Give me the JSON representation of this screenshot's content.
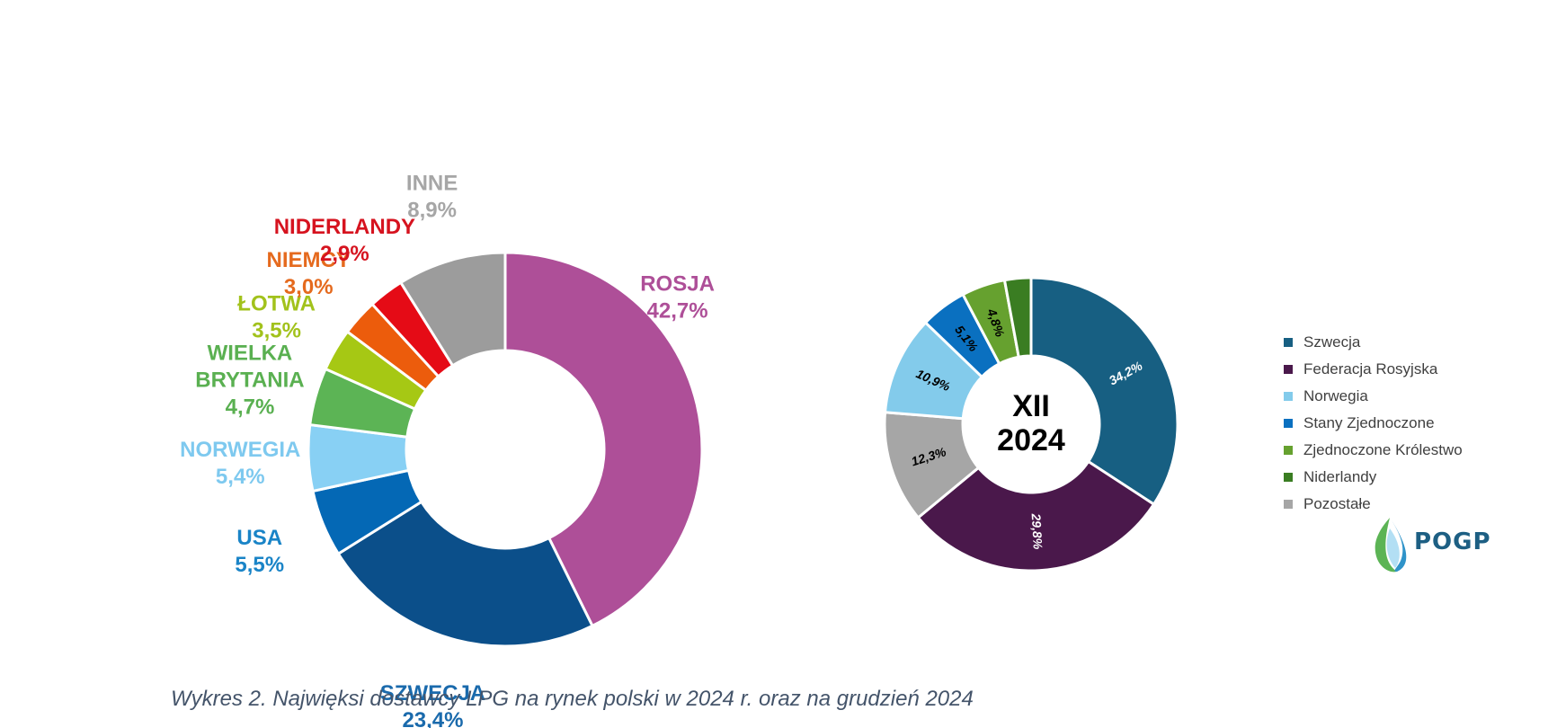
{
  "chart_data": [
    {
      "type": "pie",
      "subtype": "donut",
      "unit": "%",
      "slices": [
        {
          "name": "ROSJA",
          "value": 42.7,
          "display": "42,7%",
          "color": "#ae4f98",
          "label_color": "#ae4f98"
        },
        {
          "name": "SZWECJA",
          "value": 23.4,
          "display": "23,4%",
          "color": "#0b4f8a",
          "label_color": "#1a6aac"
        },
        {
          "name": "USA",
          "value": 5.5,
          "display": "5,5%",
          "color": "#0468b5",
          "label_color": "#1a84c7"
        },
        {
          "name": "NORWEGIA",
          "value": 5.4,
          "display": "5,4%",
          "color": "#88d0f4",
          "label_color": "#7ec9ef"
        },
        {
          "name": "WIELKA BRYTANIA",
          "name_lines": [
            "WIELKA",
            "BRYTANIA"
          ],
          "value": 4.7,
          "display": "4,7%",
          "color": "#5cb455",
          "label_color": "#5ab051"
        },
        {
          "name": "ŁOTWA",
          "value": 3.5,
          "display": "3,5%",
          "color": "#a6c814",
          "label_color": "#a2c21c"
        },
        {
          "name": "NIEMCY",
          "value": 3.0,
          "display": "3,0%",
          "color": "#ec5c0c",
          "label_color": "#e56a1e"
        },
        {
          "name": "NIDERLANDY",
          "value": 2.9,
          "display": "2,9%",
          "color": "#e50b16",
          "label_color": "#d6131f"
        },
        {
          "name": "INNE",
          "value": 8.9,
          "display": "8,9%",
          "color": "#9c9c9c",
          "label_color": "#a6a6a6"
        }
      ]
    },
    {
      "type": "pie",
      "subtype": "donut",
      "unit": "%",
      "center_label": [
        "XII",
        "2024"
      ],
      "legend_position": "right",
      "slices": [
        {
          "name": "Szwecja",
          "value": 34.2,
          "display": "34,2%",
          "color": "#175f82",
          "text_color": "#ffffff"
        },
        {
          "name": "Federacja Rosyjska",
          "value": 29.8,
          "display": "29,8%",
          "color": "#4a184b",
          "text_color": "#ffffff"
        },
        {
          "name": "Pozostałe",
          "value": 12.3,
          "display": "12,3%",
          "color": "#a6a6a6",
          "text_color": "#000000"
        },
        {
          "name": "Norwegia",
          "value": 10.9,
          "display": "10,9%",
          "color": "#83cbeb",
          "text_color": "#000000"
        },
        {
          "name": "Stany Zjednoczone",
          "value": 5.1,
          "display": "5,1%",
          "color": "#0a70c0",
          "text_color": "#000000"
        },
        {
          "name": "Zjednoczone Królestwo",
          "value": 4.8,
          "display": "4,8%",
          "color": "#66a12f",
          "text_color": "#000000"
        },
        {
          "name": "Niderlandy",
          "value": 2.9,
          "display": "",
          "color": "#3a7d22",
          "text_color": "#000000"
        }
      ],
      "legend": [
        {
          "label": "Szwecja",
          "color": "#175f82"
        },
        {
          "label": "Federacja Rosyjska",
          "color": "#4a184b"
        },
        {
          "label": "Norwegia",
          "color": "#83cbeb"
        },
        {
          "label": "Stany Zjednoczone",
          "color": "#0a70c0"
        },
        {
          "label": "Zjednoczone Królestwo",
          "color": "#66a12f"
        },
        {
          "label": "Niderlandy",
          "color": "#3a7d22"
        },
        {
          "label": "Pozostałe",
          "color": "#a6a6a6"
        }
      ]
    }
  ],
  "caption": "Wykres 2. Najwięksi dostawcy LPG na rynek polski w 2024 r. oraz na grudzień 2024",
  "logo": {
    "text": "POGP",
    "icon": "leaf-drop-icon"
  }
}
